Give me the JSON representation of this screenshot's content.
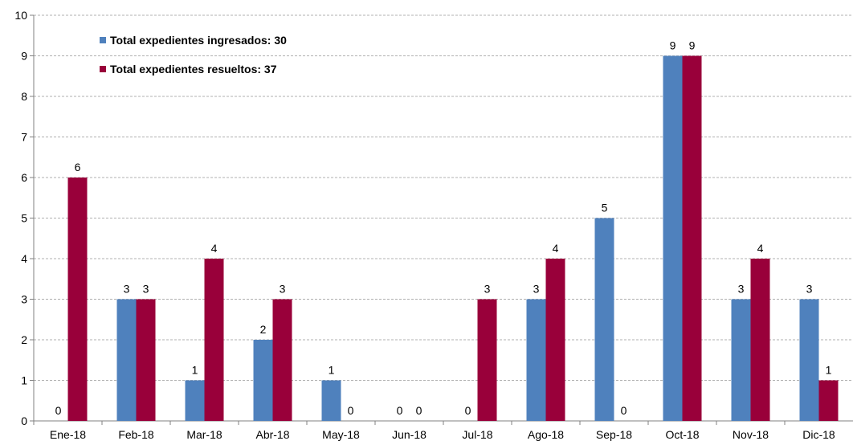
{
  "chart_data": {
    "type": "bar",
    "title": "",
    "xlabel": "",
    "ylabel": "",
    "ylim": [
      0,
      10
    ],
    "yticks": [
      "0",
      "1",
      "2",
      "3",
      "4",
      "5",
      "6",
      "7",
      "8",
      "9",
      "10"
    ],
    "grid": "horizontal dashed",
    "legend_position": "top-left",
    "categories": [
      "Ene-18",
      "Feb-18",
      "Mar-18",
      "Abr-18",
      "May-18",
      "Jun-18",
      "Jul-18",
      "Ago-18",
      "Sep-18",
      "Oct-18",
      "Nov-18",
      "Dic-18"
    ],
    "series": [
      {
        "name": "Total expedientes ingresados: 30",
        "color": "#4f81bd",
        "values": [
          0,
          3,
          1,
          2,
          1,
          0,
          0,
          3,
          5,
          9,
          3,
          3
        ]
      },
      {
        "name": "Total expedientes resueltos: 37",
        "color": "#99003a",
        "values": [
          6,
          3,
          4,
          3,
          0,
          0,
          3,
          4,
          0,
          9,
          4,
          1
        ]
      }
    ]
  }
}
